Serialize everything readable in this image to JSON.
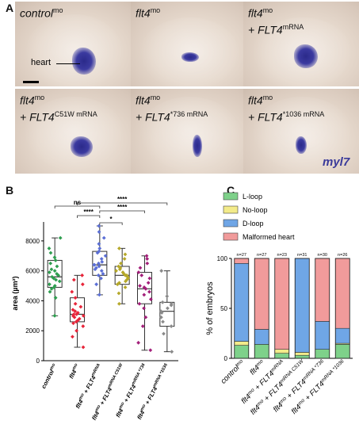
{
  "panel_a": {
    "letter": "A",
    "tiles": [
      {
        "line1": "control",
        "sup1": "mo",
        "line2": "",
        "sup2": ""
      },
      {
        "line1": "flt4",
        "sup1": "mo",
        "line2": "",
        "sup2": ""
      },
      {
        "line1": "flt4",
        "sup1": "mo",
        "line2": "+ FLT4",
        "sup2": "mRNA"
      },
      {
        "line1": "flt4",
        "sup1": "mo",
        "line2": "+ FLT4",
        "line2_sup": "C51W",
        "sup2": " mRNA"
      },
      {
        "line1": "flt4",
        "sup1": "mo",
        "line2": "+ FLT4",
        "line2_sup": "*736",
        "sup2": " mRNA"
      },
      {
        "line1": "flt4",
        "sup1": "mo",
        "line2": "+ FLT4",
        "line2_sup": "*1036",
        "sup2": " mRNA"
      }
    ],
    "heart_label": "heart",
    "gene_label": "myl7"
  },
  "panel_b": {
    "letter": "B",
    "chart_data": {
      "type": "box",
      "ylabel": "area (µm²)",
      "ylim": [
        0,
        9000
      ],
      "yticks": [
        0,
        2000,
        4000,
        6000,
        8000
      ],
      "groups": [
        {
          "name": "control",
          "sup": "mo",
          "color": "#2e9e4f",
          "q1": 4900,
          "median": 5600,
          "q3": 6700,
          "min": 3000,
          "max": 8200,
          "points": [
            3000,
            4200,
            4600,
            4800,
            4900,
            5000,
            5100,
            5300,
            5400,
            5500,
            5600,
            5700,
            5800,
            5900,
            6000,
            6100,
            6300,
            6500,
            6700,
            6900,
            7200,
            7500,
            8200
          ]
        },
        {
          "name": "flt4",
          "sup": "mo",
          "color": "#e8253a",
          "q1": 2600,
          "median": 3100,
          "q3": 4200,
          "min": 900,
          "max": 5700,
          "points": [
            900,
            1600,
            2000,
            2300,
            2500,
            2600,
            2700,
            2800,
            2900,
            3000,
            3000,
            3100,
            3100,
            3200,
            3300,
            3400,
            3600,
            3800,
            4200,
            4600,
            5100,
            5400,
            5700
          ]
        },
        {
          "name": "flt4mo + FLT4mRNA",
          "color": "#5b6fd6",
          "q1": 5700,
          "median": 6400,
          "q3": 7300,
          "min": 4400,
          "max": 9000,
          "points": [
            4400,
            5100,
            5500,
            5700,
            5800,
            6000,
            6100,
            6200,
            6300,
            6400,
            6400,
            6500,
            6600,
            6800,
            7000,
            7200,
            7300,
            7500,
            7800,
            8200,
            8600,
            9000
          ]
        },
        {
          "name": "flt4mo + FLT4mRNA C51W",
          "color": "#b5a82a",
          "q1": 5100,
          "median": 5700,
          "q3": 6300,
          "min": 3800,
          "max": 7500,
          "points": [
            3800,
            4500,
            4900,
            5100,
            5200,
            5300,
            5400,
            5500,
            5600,
            5700,
            5700,
            5800,
            5900,
            6000,
            6100,
            6200,
            6300,
            6500,
            6800,
            7100,
            7500
          ]
        },
        {
          "name": "flt4mo + FLT4mRNA *736",
          "color": "#a3207a",
          "q1": 3800,
          "median": 4800,
          "q3": 5900,
          "min": 700,
          "max": 7000,
          "points": [
            700,
            1200,
            2300,
            2900,
            3500,
            3800,
            4100,
            4400,
            4600,
            4800,
            4900,
            5000,
            5200,
            5500,
            5700,
            5900,
            6200,
            6500,
            6800,
            7000
          ]
        },
        {
          "name": "flt4mo + FLT4mRNA *1036",
          "color": "#8a8a8a",
          "q1": 2300,
          "median": 3300,
          "q3": 3900,
          "min": 600,
          "max": 6000,
          "points": [
            600,
            1800,
            2300,
            2600,
            2900,
            3200,
            3300,
            3500,
            3700,
            3800,
            3900,
            4300,
            6000
          ]
        }
      ],
      "tick_labels": [
        "control",
        "flt4",
        "flt4",
        "flt4",
        "flt4",
        "flt4"
      ],
      "tick_sups": [
        "mo",
        "mo",
        "mo",
        "mo",
        "mo",
        "mo"
      ],
      "tick_suffix": [
        "",
        "",
        " + FLT4",
        " + FLT4",
        " + FLT4",
        " + FLT4"
      ],
      "tick_suffix_sup": [
        "",
        "",
        "mRNA",
        "mRNA C51W",
        "mRNA *736",
        "mRNA *1036"
      ],
      "significance": [
        {
          "label": "ns",
          "from": 0,
          "to": 2
        },
        {
          "label": "****",
          "from": 1,
          "to": 5
        },
        {
          "label": "****",
          "from": 1,
          "to": 2
        },
        {
          "label": "*",
          "from": 2,
          "to": 3
        },
        {
          "label": "****",
          "from": 2,
          "to": 4
        }
      ]
    }
  },
  "panel_c": {
    "letter": "C",
    "chart_data": {
      "type": "bar",
      "stacked": true,
      "ylabel": "% of embryos",
      "ylim": [
        0,
        100
      ],
      "yticks": [
        0,
        50,
        100
      ],
      "categories": [
        "control",
        "flt4",
        "flt4 + FLT4",
        "flt4 + FLT4",
        "flt4 + FLT4",
        "flt4 + FLT4"
      ],
      "category_sups": [
        "mo",
        "mo",
        "mo",
        "mo",
        "mo",
        "mo"
      ],
      "category_suffix_sups": [
        "",
        "",
        "mRNA",
        "mRNA C51W",
        "mRNA *736",
        "mRNA *1036"
      ],
      "n_labels": [
        "n=27",
        "n=27",
        "n=23",
        "n=31",
        "n=30",
        "n=26"
      ],
      "series": [
        {
          "name": "L-loop",
          "color": "#7ed18a",
          "values": [
            13,
            14,
            5,
            3,
            9,
            14
          ]
        },
        {
          "name": "No-loop",
          "color": "#f3eb8a",
          "values": [
            4,
            0,
            4,
            3,
            0,
            1
          ]
        },
        {
          "name": "D-loop",
          "color": "#6fa6e6",
          "values": [
            78,
            15,
            0,
            94,
            28,
            15
          ]
        },
        {
          "name": "Malformed heart",
          "color": "#f19b9b",
          "values": [
            5,
            71,
            91,
            0,
            63,
            70
          ]
        }
      ]
    }
  }
}
